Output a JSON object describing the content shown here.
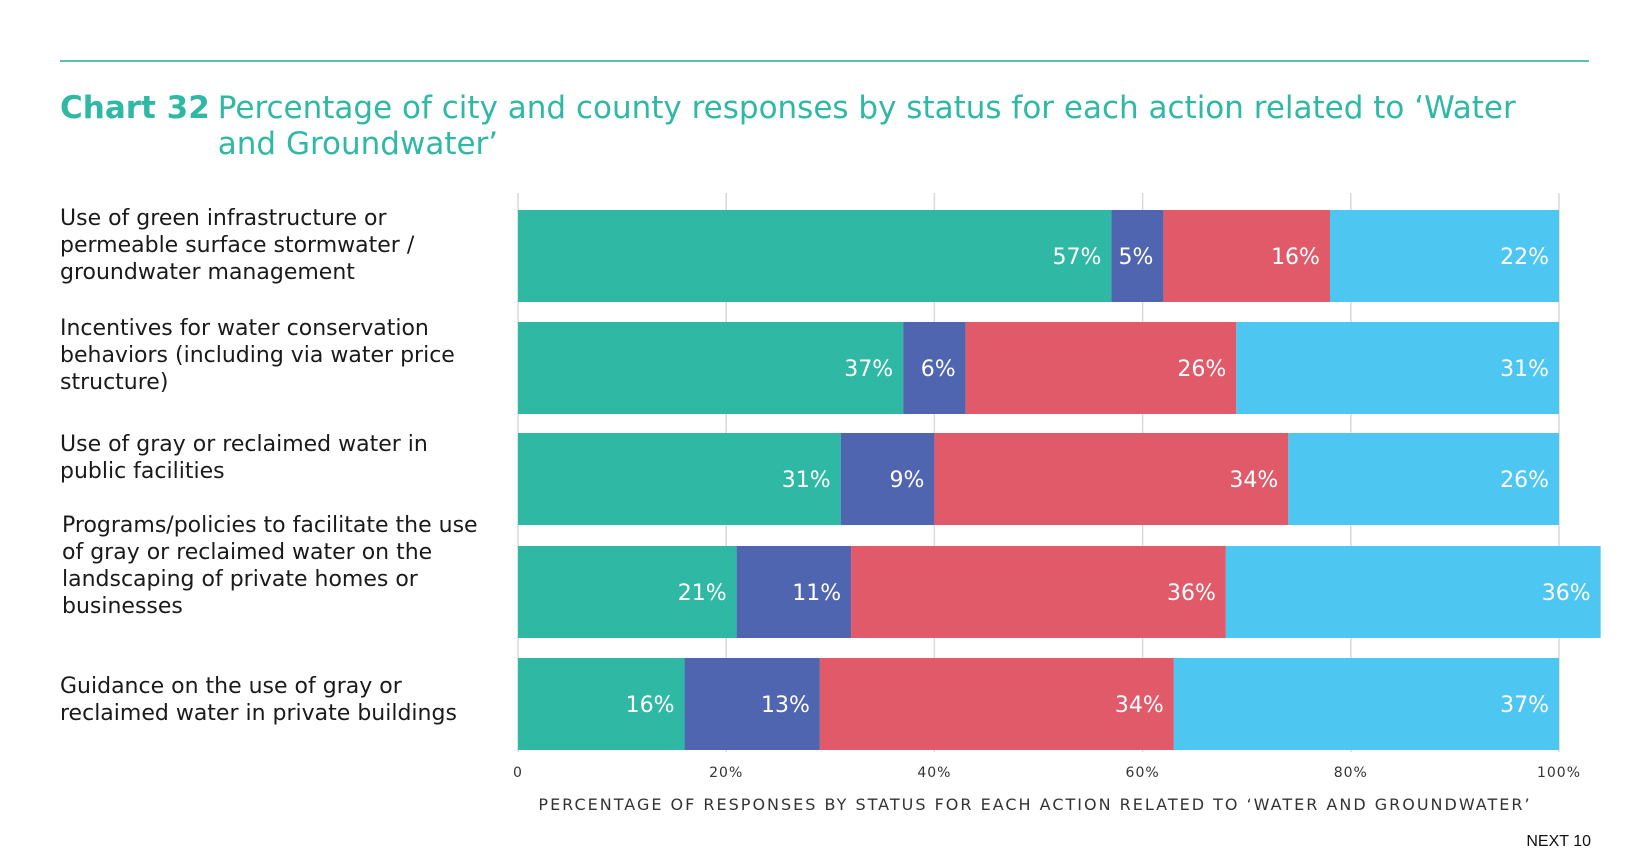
{
  "header": {
    "chart_number": "Chart 32",
    "title": "Percentage of city and county responses by status for each action related to ‘Water and Groundwater’"
  },
  "footer": {
    "brand": "NEXT 10"
  },
  "colors": {
    "teal": "#2fb9a5",
    "indigo": "#4f65b0",
    "red": "#e05a69",
    "sky": "#4dc7f2",
    "grid": "#d9d9d9"
  },
  "chart_data": {
    "type": "bar",
    "orientation": "horizontal",
    "stacked": true,
    "categories": [
      "Use of green infrastructure or permeable surface stormwater / groundwater management",
      "Incentives for water conservation behaviors (including via water price structure)",
      "Use of gray or reclaimed water in public facilities",
      "Programs/policies to facilitate the use of gray or reclaimed water on the landscaping of private homes or businesses",
      "Guidance on the use of gray or reclaimed water in private buildings"
    ],
    "series": [
      {
        "color": "#2fb9a5",
        "values": [
          57,
          37,
          31,
          21,
          16
        ],
        "labels": [
          "57%",
          "37%",
          "31%",
          "21%",
          "16%"
        ]
      },
      {
        "color": "#4f65b0",
        "values": [
          5,
          6,
          9,
          11,
          13
        ],
        "labels": [
          "5%",
          "6%",
          "9%",
          "11%",
          "13%"
        ]
      },
      {
        "color": "#e05a69",
        "values": [
          16,
          26,
          34,
          36,
          34
        ],
        "labels": [
          "16%",
          "26%",
          "34%",
          "36%",
          "34%"
        ]
      },
      {
        "color": "#4dc7f2",
        "values": [
          22,
          31,
          26,
          36,
          37
        ],
        "labels": [
          "22%",
          "31%",
          "26%",
          "36%",
          "37%"
        ]
      }
    ],
    "xlim": [
      0,
      100
    ],
    "xticks": [
      0,
      20,
      40,
      60,
      80,
      100
    ],
    "xtick_labels": [
      "0",
      "20%",
      "40%",
      "60%",
      "80%",
      "100%"
    ],
    "xlabel": "PERCENTAGE OF RESPONSES BY STATUS FOR EACH ACTION RELATED TO ‘WATER AND GROUNDWATER’",
    "ylabel": "",
    "grid": true,
    "legend": "none"
  }
}
